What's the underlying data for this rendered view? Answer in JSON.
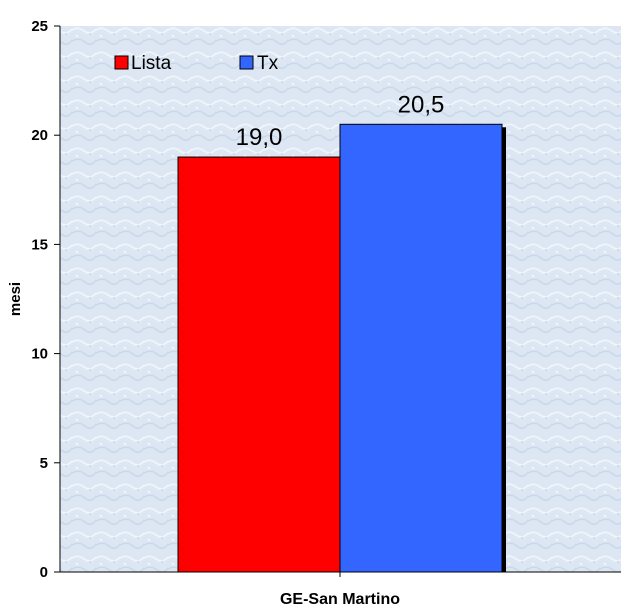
{
  "chart_data": {
    "type": "bar",
    "categories": [
      "GE-San Martino"
    ],
    "series": [
      {
        "name": "Lista",
        "values": [
          19.0
        ],
        "value_labels": [
          "19,0"
        ],
        "color": "#ff0000"
      },
      {
        "name": "Tx",
        "values": [
          20.5
        ],
        "value_labels": [
          "20,5"
        ],
        "color": "#3366ff"
      }
    ],
    "title": "",
    "xlabel": "",
    "ylabel": "mesi",
    "ylim": [
      0,
      25
    ],
    "yticks": [
      0,
      5,
      10,
      15,
      20,
      25
    ],
    "ytick_labels": [
      "0",
      "5",
      "10",
      "15",
      "20",
      "25"
    ],
    "grid": false,
    "legend_position": "top-left",
    "plot_background": "#dce8f4"
  }
}
